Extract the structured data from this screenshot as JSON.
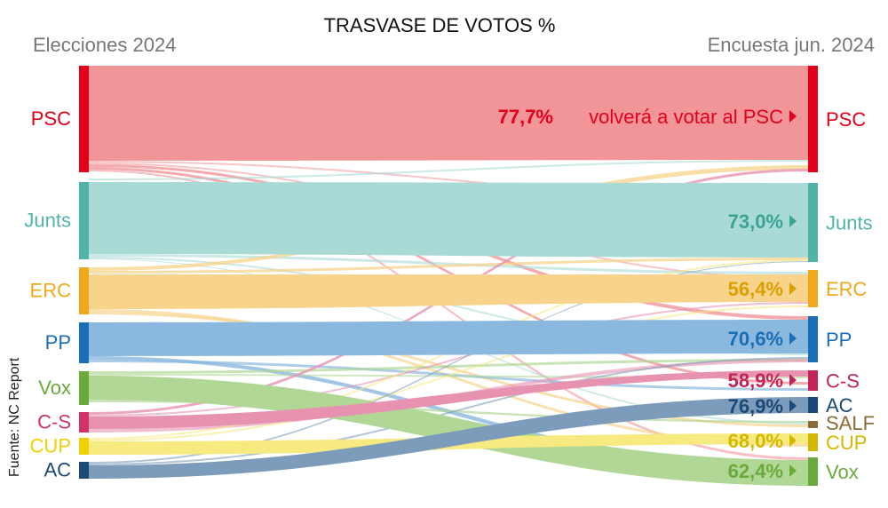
{
  "chart_data": {
    "type": "sankey",
    "title": "TRASVASE DE VOTOS %",
    "left_header": "Elecciones 2024",
    "right_header": "Encuesta jun. 2024",
    "source": "Fuente: NC Report",
    "retention_suffix": "volverá a votar al PSC",
    "left_nodes": [
      {
        "id": "PSC",
        "label": "PSC",
        "color": "#e2001a",
        "band": "#f29599"
      },
      {
        "id": "Junts",
        "label": "Junts",
        "color": "#4fb3a9",
        "band": "#a9dad5"
      },
      {
        "id": "ERC",
        "label": "ERC",
        "color": "#f0a81c",
        "band": "#f7d38b"
      },
      {
        "id": "PP",
        "label": "PP",
        "color": "#1a6eb5",
        "band": "#8ab8df"
      },
      {
        "id": "Vox",
        "label": "Vox",
        "color": "#6aaa3a",
        "band": "#b1d796"
      },
      {
        "id": "C-S",
        "label": "C-S",
        "color": "#d0336a",
        "band": "#e892b2"
      },
      {
        "id": "CUP",
        "label": "CUP",
        "color": "#f0d000",
        "band": "#f7ea80"
      },
      {
        "id": "AC",
        "label": "AC",
        "color": "#1c4a77",
        "band": "#7d9cbb"
      }
    ],
    "right_nodes": [
      {
        "id": "PSC",
        "label": "PSC",
        "color": "#e2001a"
      },
      {
        "id": "Junts",
        "label": "Junts",
        "color": "#4fb3a9"
      },
      {
        "id": "ERC",
        "label": "ERC",
        "color": "#f0a81c"
      },
      {
        "id": "PP",
        "label": "PP",
        "color": "#1a6eb5"
      },
      {
        "id": "C-S",
        "label": "C-S",
        "color": "#c0245a"
      },
      {
        "id": "AC",
        "label": "AC",
        "color": "#1c4a77"
      },
      {
        "id": "SALF",
        "label": "SALF",
        "color": "#8a6d3b"
      },
      {
        "id": "CUP",
        "label": "CUP",
        "color": "#d4b800"
      },
      {
        "id": "Vox",
        "label": "Vox",
        "color": "#6aaa3a"
      }
    ],
    "retention": [
      {
        "party": "PSC",
        "value": 77.7,
        "label": "77,7%",
        "color": "#e2001a"
      },
      {
        "party": "Junts",
        "value": 73.0,
        "label": "73,0%",
        "color": "#3aa396"
      },
      {
        "party": "ERC",
        "value": 56.4,
        "label": "56,4%",
        "color": "#d9a000"
      },
      {
        "party": "PP",
        "value": 70.6,
        "label": "70,6%",
        "color": "#1a6eb5"
      },
      {
        "party": "C-S",
        "value": 58.9,
        "label": "58,9%",
        "color": "#c0245a"
      },
      {
        "party": "AC",
        "value": 76.9,
        "label": "76,9%",
        "color": "#1c4a77"
      },
      {
        "party": "CUP",
        "value": 68.0,
        "label": "68,0%",
        "color": "#d4b800"
      },
      {
        "party": "Vox",
        "value": 62.4,
        "label": "62,4%",
        "color": "#6aaa3a"
      }
    ]
  }
}
